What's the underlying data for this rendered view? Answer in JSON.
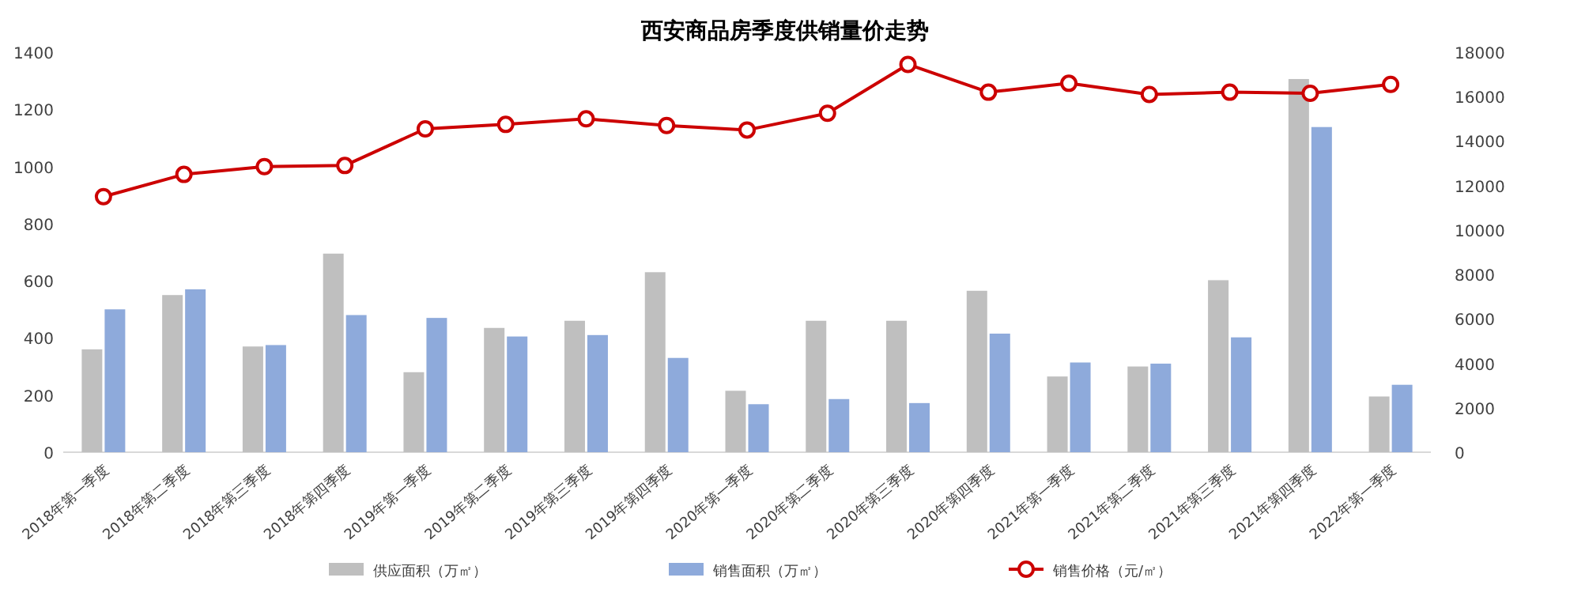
{
  "chart_data": {
    "type": "bar",
    "title": "西安商品房季度供销量价走势",
    "categories": [
      "2018年第一季度",
      "2018年第二季度",
      "2018年第三季度",
      "2018年第四季度",
      "2019年第一季度",
      "2019年第二季度",
      "2019年第三季度",
      "2019年第四季度",
      "2020年第一季度",
      "2020年第二季度",
      "2020年第三季度",
      "2020年第四季度",
      "2021年第一季度",
      "2021年第二季度",
      "2021年第三季度",
      "2021年第四季度",
      "2022年第一季度"
    ],
    "series": [
      {
        "name": "供应面积（万㎡）",
        "color": "#bfbfbf",
        "values": [
          360,
          550,
          370,
          695,
          280,
          435,
          460,
          630,
          215,
          460,
          460,
          565,
          265,
          300,
          602,
          1306,
          195
        ]
      },
      {
        "name": "销售面积（万㎡）",
        "color": "#8eaadb",
        "values": [
          500,
          570,
          375,
          480,
          470,
          405,
          410,
          330,
          168,
          186,
          172,
          415,
          314,
          310,
          402,
          1138,
          236
        ]
      },
      {
        "name": "销售价格（元/㎡）",
        "type": "line",
        "axis": "y2",
        "color": "#cc0000",
        "marker": "circle",
        "values": [
          11500,
          12500,
          12850,
          12900,
          14550,
          14750,
          15000,
          14700,
          14500,
          15250,
          17450,
          16200,
          16600,
          16100,
          16200,
          16150,
          16550
        ]
      }
    ],
    "ylim": [
      0,
      1400
    ],
    "yticks": [
      0,
      200,
      400,
      600,
      800,
      1000,
      1200,
      1400
    ],
    "y2lim": [
      0,
      18000
    ],
    "y2ticks": [
      0,
      2000,
      4000,
      6000,
      8000,
      10000,
      12000,
      14000,
      16000,
      18000
    ],
    "legend": "bottom"
  }
}
